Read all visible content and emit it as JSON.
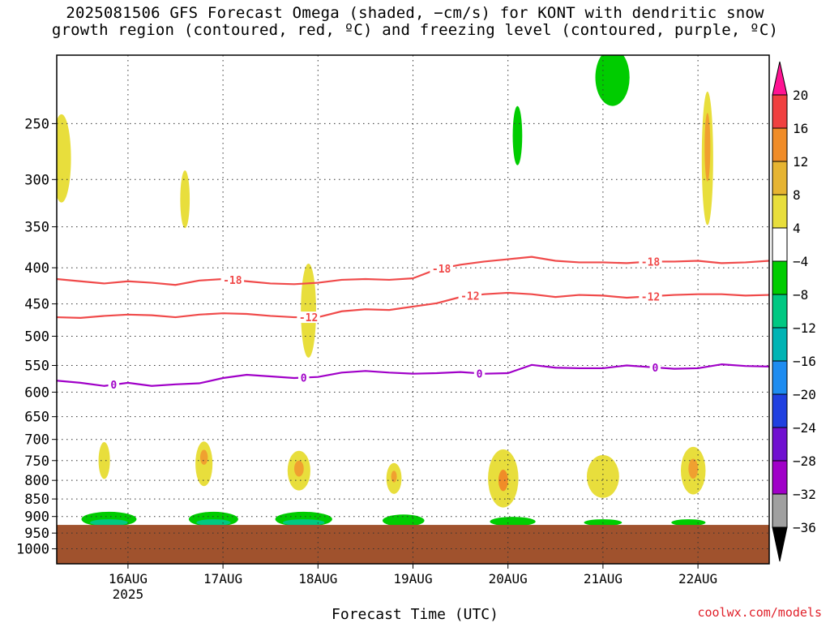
{
  "title": {
    "line1": "2025081506 GFS Forecast Omega (shaded, −cm/s) for KONT with dendritic snow",
    "line2": "growth region (contoured, red, ºC) and freezing level (contoured, purple, ºC)"
  },
  "credit": "coolwx.com/models",
  "chart_data": {
    "type": "heatmap",
    "xlabel": "Forecast Time (UTC)",
    "ylabel": "",
    "x_ticks": [
      {
        "label": "16AUG",
        "sub": "2025"
      },
      {
        "label": "17AUG",
        "sub": ""
      },
      {
        "label": "18AUG",
        "sub": ""
      },
      {
        "label": "19AUG",
        "sub": ""
      },
      {
        "label": "20AUG",
        "sub": ""
      },
      {
        "label": "21AUG",
        "sub": ""
      },
      {
        "label": "22AUG",
        "sub": ""
      }
    ],
    "x_range_days": [
      15.25,
      22.75
    ],
    "y_ticks": [
      250,
      300,
      350,
      400,
      450,
      500,
      550,
      600,
      650,
      700,
      750,
      800,
      850,
      900,
      950,
      1000
    ],
    "y_range_hpa": [
      200,
      1050
    ],
    "y_scale": "log-pressure",
    "grid": "dotted",
    "surface_below_hpa": 925,
    "surface_color": "#a0522d",
    "colorbar": {
      "labels": [
        "20",
        "16",
        "12",
        "8",
        "4",
        "−4",
        "−8",
        "−12",
        "−16",
        "−20",
        "−24",
        "−28",
        "−32",
        "−36"
      ],
      "colors": [
        "#ff1493",
        "#f04040",
        "#f08c28",
        "#e6b432",
        "#e8de3c",
        "#ffffff",
        "#00cc00",
        "#00c882",
        "#00b4b4",
        "#1e8cf0",
        "#2040e0",
        "#7010d0",
        "#a000c8",
        "#a0a0a0",
        "#000000"
      ]
    },
    "series": [
      {
        "name": "-18",
        "color": "#f04a4a",
        "x": [
          15.25,
          15.5,
          15.75,
          16.0,
          16.25,
          16.5,
          16.75,
          17.0,
          17.25,
          17.5,
          17.75,
          18.0,
          18.25,
          18.5,
          18.75,
          19.0,
          19.25,
          19.5,
          19.75,
          20.0,
          20.25,
          20.5,
          20.75,
          21.0,
          21.25,
          21.5,
          21.75,
          22.0,
          22.25,
          22.5,
          22.75
        ],
        "y": [
          415,
          418,
          421,
          418,
          420,
          423,
          417,
          415,
          418,
          421,
          422,
          420,
          416,
          415,
          416,
          414,
          402,
          396,
          392,
          389,
          386,
          391,
          393,
          393,
          394,
          392,
          392,
          391,
          394,
          393,
          391
        ],
        "labels_at": [
          17.1,
          19.3,
          21.5
        ]
      },
      {
        "name": "-12",
        "color": "#f04a4a",
        "x": [
          15.25,
          15.5,
          15.75,
          16.0,
          16.25,
          16.5,
          16.75,
          17.0,
          17.25,
          17.5,
          17.75,
          18.0,
          18.25,
          18.5,
          18.75,
          19.0,
          19.25,
          19.5,
          19.75,
          20.0,
          20.25,
          20.5,
          20.75,
          21.0,
          21.25,
          21.5,
          21.75,
          22.0,
          22.25,
          22.5,
          22.75
        ],
        "y": [
          470,
          471,
          468,
          466,
          467,
          470,
          466,
          464,
          465,
          468,
          470,
          470,
          461,
          458,
          459,
          454,
          449,
          440,
          436,
          434,
          436,
          440,
          437,
          438,
          441,
          439,
          437,
          436,
          436,
          438,
          437
        ],
        "labels_at": [
          17.9,
          19.6,
          21.5
        ]
      },
      {
        "name": "0",
        "color": "#a000c8",
        "x": [
          15.25,
          15.5,
          15.75,
          16.0,
          16.25,
          16.5,
          16.75,
          17.0,
          17.25,
          17.5,
          17.75,
          18.0,
          18.25,
          18.5,
          18.75,
          19.0,
          19.25,
          19.5,
          19.75,
          20.0,
          20.25,
          20.5,
          20.75,
          21.0,
          21.25,
          21.5,
          21.75,
          22.0,
          22.25,
          22.5,
          22.75
        ],
        "y": [
          578,
          582,
          588,
          582,
          588,
          585,
          583,
          573,
          567,
          570,
          573,
          571,
          563,
          560,
          563,
          565,
          564,
          562,
          565,
          564,
          549,
          554,
          555,
          555,
          550,
          553,
          556,
          555,
          548,
          551,
          552
        ],
        "labels_at": [
          15.85,
          17.85,
          19.7,
          21.55
        ]
      }
    ],
    "shaded_regions": [
      {
        "color": "#e8de3c",
        "x": 15.75,
        "y": 750,
        "rx": 0.06,
        "ry": 45
      },
      {
        "color": "#e8de3c",
        "x": 16.8,
        "y": 758,
        "rx": 0.09,
        "ry": 55
      },
      {
        "color": "#f0a030",
        "x": 16.8,
        "y": 742,
        "rx": 0.04,
        "ry": 18
      },
      {
        "color": "#e8de3c",
        "x": 17.8,
        "y": 775,
        "rx": 0.12,
        "ry": 50
      },
      {
        "color": "#f0a030",
        "x": 17.8,
        "y": 770,
        "rx": 0.05,
        "ry": 20
      },
      {
        "color": "#e8de3c",
        "x": 18.8,
        "y": 795,
        "rx": 0.08,
        "ry": 40
      },
      {
        "color": "#f0a030",
        "x": 18.8,
        "y": 790,
        "rx": 0.03,
        "ry": 15
      },
      {
        "color": "#e8de3c",
        "x": 19.95,
        "y": 795,
        "rx": 0.16,
        "ry": 75
      },
      {
        "color": "#f08c28",
        "x": 19.95,
        "y": 800,
        "rx": 0.05,
        "ry": 28
      },
      {
        "color": "#e8de3c",
        "x": 21.0,
        "y": 790,
        "rx": 0.17,
        "ry": 55
      },
      {
        "color": "#e8de3c",
        "x": 21.95,
        "y": 775,
        "rx": 0.13,
        "ry": 60
      },
      {
        "color": "#f0a030",
        "x": 21.95,
        "y": 770,
        "rx": 0.05,
        "ry": 25
      },
      {
        "color": "#e8de3c",
        "x": 15.3,
        "y": 280,
        "rx": 0.1,
        "ry": 40
      },
      {
        "color": "#e8de3c",
        "x": 17.9,
        "y": 460,
        "rx": 0.08,
        "ry": 70
      },
      {
        "color": "#e8de3c",
        "x": 16.6,
        "y": 320,
        "rx": 0.05,
        "ry": 30
      },
      {
        "color": "#e8de3c",
        "x": 22.1,
        "y": 280,
        "rx": 0.06,
        "ry": 60
      },
      {
        "color": "#f0a030",
        "x": 22.1,
        "y": 270,
        "rx": 0.03,
        "ry": 30
      },
      {
        "color": "#00cc00",
        "x": 21.1,
        "y": 215,
        "rx": 0.18,
        "ry": 20
      },
      {
        "color": "#00cc00",
        "x": 20.1,
        "y": 260,
        "rx": 0.05,
        "ry": 25
      },
      {
        "color": "#00cc00",
        "x": 16.9,
        "y": 908,
        "rx": 0.26,
        "ry": 22
      },
      {
        "color": "#00c882",
        "x": 16.9,
        "y": 918,
        "rx": 0.18,
        "ry": 10
      },
      {
        "color": "#00cc00",
        "x": 15.8,
        "y": 908,
        "rx": 0.29,
        "ry": 22
      },
      {
        "color": "#00c882",
        "x": 15.8,
        "y": 918,
        "rx": 0.2,
        "ry": 10
      },
      {
        "color": "#00cc00",
        "x": 17.85,
        "y": 908,
        "rx": 0.3,
        "ry": 22
      },
      {
        "color": "#00c882",
        "x": 17.85,
        "y": 918,
        "rx": 0.22,
        "ry": 10
      },
      {
        "color": "#00cc00",
        "x": 18.9,
        "y": 912,
        "rx": 0.22,
        "ry": 18
      },
      {
        "color": "#00cc00",
        "x": 20.05,
        "y": 915,
        "rx": 0.24,
        "ry": 14
      },
      {
        "color": "#00cc00",
        "x": 21.0,
        "y": 918,
        "rx": 0.2,
        "ry": 10
      },
      {
        "color": "#00cc00",
        "x": 21.9,
        "y": 918,
        "rx": 0.18,
        "ry": 10
      }
    ]
  }
}
